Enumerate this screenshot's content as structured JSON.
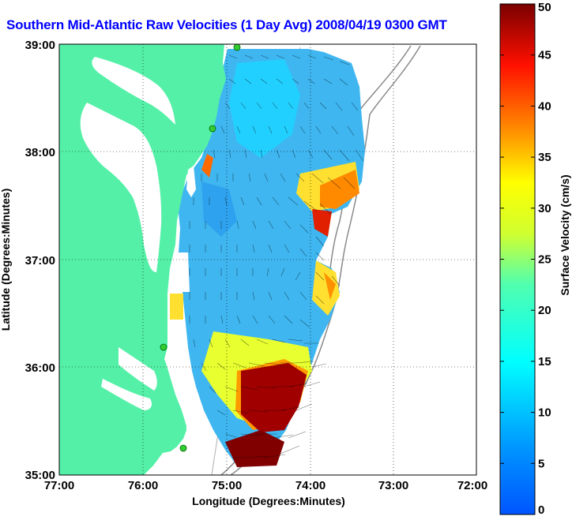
{
  "title": "Southern Mid-Atlantic Raw Velocities (1 Day Avg) 2008/04/19 0300 GMT",
  "map": {
    "xlabel": "Longitude (Degrees:Minutes)",
    "ylabel": "Latitude (Degrees:Minutes)",
    "x_ticks": [
      "77:00",
      "76:00",
      "75:00",
      "74:00",
      "73:00",
      "72:00"
    ],
    "y_ticks": [
      "39:00",
      "38:00",
      "37:00",
      "36:00",
      "35:00"
    ],
    "lon_range": [
      -77,
      -72
    ],
    "lat_range": [
      35,
      39
    ],
    "land_color": "#55f0a8",
    "grid_style": "dotted"
  },
  "colorbar": {
    "label": "Surface Velocity (cm/s)",
    "ticks": [
      "0",
      "5",
      "10",
      "15",
      "20",
      "25",
      "30",
      "35",
      "40",
      "45",
      "50"
    ],
    "range": [
      0,
      50
    ],
    "colormap": "jet"
  },
  "stations": [
    {
      "name": "station-1",
      "lon": -74.92,
      "lat": 39.0
    },
    {
      "name": "station-2",
      "lon": -75.1,
      "lat": 38.22
    },
    {
      "name": "station-3",
      "lon": -75.7,
      "lat": 36.18
    },
    {
      "name": "station-4",
      "lon": -75.5,
      "lat": 35.26
    }
  ]
}
